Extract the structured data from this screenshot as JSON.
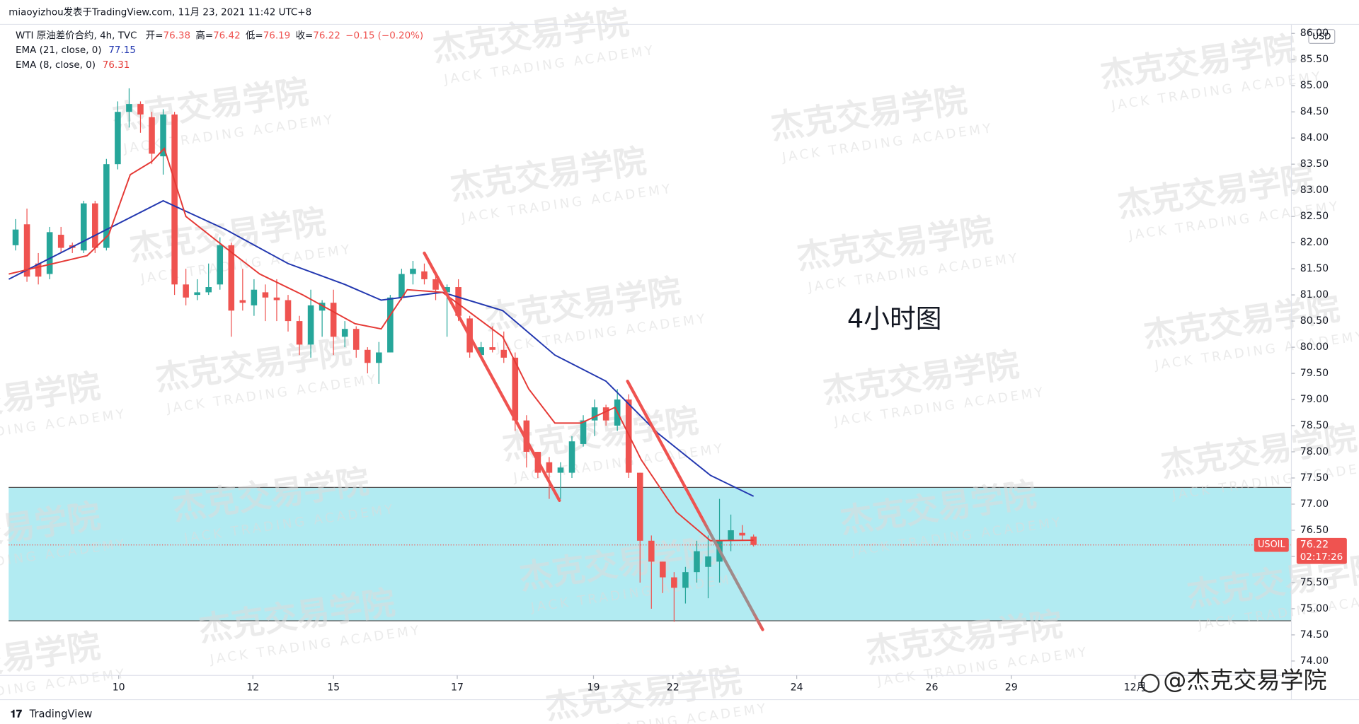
{
  "header": "miaoyizhou发表于TradingView.com,  11月 23, 2021 11:42 UTC+8",
  "chart_data": {
    "type": "candlestick",
    "symbol": "WTI 原油差价合约, 4h, TVC",
    "ohlc_labels": [
      "开=",
      "高=",
      "低=",
      "收="
    ],
    "change": "−0.15 (−0.20%)",
    "up_color": "#26a69a",
    "down_color": "#ef5350",
    "ohlc": {
      "open": [
        81.95,
        82.35,
        81.6,
        81.4,
        82.15,
        81.95,
        81.85,
        82.75,
        81.9,
        83.5,
        84.5,
        84.65,
        84.4,
        83.65,
        84.45,
        81.2,
        81.0,
        81.05,
        81.2,
        81.95,
        80.9,
        80.8,
        81.05,
        80.95,
        80.9,
        80.5,
        80.05,
        80.7,
        80.85,
        80.2,
        80.35,
        79.95,
        79.7,
        79.9,
        80.95,
        81.4,
        81.45,
        81.3,
        81.05,
        81.15,
        80.55,
        79.85,
        80.0,
        79.95,
        79.8,
        78.6,
        78.0,
        77.8,
        77.6,
        77.6,
        78.15,
        78.6,
        78.85,
        78.5,
        79.0,
        77.6,
        76.3,
        75.9,
        75.6,
        75.4,
        75.7,
        75.8,
        75.9,
        76.3,
        76.45,
        76.38
      ],
      "high": [
        82.45,
        82.65,
        81.8,
        82.3,
        82.3,
        82.0,
        82.8,
        82.8,
        83.6,
        84.7,
        84.95,
        84.7,
        84.5,
        84.55,
        84.5,
        81.5,
        81.3,
        81.6,
        82.1,
        82.0,
        81.5,
        81.3,
        81.2,
        81.3,
        81.0,
        80.6,
        81.1,
        80.9,
        81.1,
        80.5,
        80.4,
        80.0,
        80.1,
        81.0,
        81.5,
        81.65,
        81.6,
        81.4,
        81.2,
        81.3,
        80.6,
        80.1,
        80.4,
        80.3,
        79.9,
        78.7,
        78.0,
        77.9,
        77.8,
        78.3,
        78.7,
        79.0,
        78.9,
        79.2,
        79.1,
        77.6,
        76.4,
        75.9,
        75.7,
        75.8,
        76.3,
        76.4,
        77.1,
        76.8,
        76.6,
        76.42
      ],
      "low": [
        81.85,
        81.25,
        81.2,
        81.3,
        81.8,
        81.8,
        81.8,
        81.8,
        81.85,
        83.4,
        84.2,
        84.1,
        83.5,
        83.3,
        81.0,
        80.8,
        80.9,
        81.0,
        81.1,
        80.2,
        80.7,
        80.6,
        80.5,
        80.5,
        80.3,
        79.85,
        79.8,
        80.2,
        79.85,
        80.0,
        79.8,
        79.5,
        79.3,
        79.9,
        80.9,
        81.2,
        81.2,
        80.9,
        80.2,
        80.5,
        79.8,
        79.8,
        79.9,
        79.7,
        78.4,
        77.7,
        77.5,
        77.1,
        77.1,
        77.5,
        78.1,
        78.3,
        78.5,
        78.4,
        77.5,
        75.5,
        75.0,
        75.3,
        74.75,
        75.1,
        75.5,
        75.2,
        75.5,
        76.1,
        76.3,
        76.19
      ],
      "close": [
        82.25,
        81.35,
        81.35,
        82.2,
        81.9,
        81.9,
        82.75,
        81.9,
        83.5,
        84.5,
        84.65,
        84.45,
        83.7,
        84.45,
        81.2,
        80.95,
        81.05,
        81.15,
        81.95,
        80.7,
        80.85,
        81.1,
        80.95,
        80.9,
        80.5,
        80.05,
        80.8,
        80.85,
        80.2,
        80.35,
        79.95,
        79.7,
        79.9,
        80.95,
        81.4,
        81.5,
        81.3,
        81.1,
        81.15,
        80.6,
        79.9,
        80.0,
        79.95,
        79.8,
        78.6,
        78.0,
        77.6,
        77.6,
        77.7,
        78.2,
        78.6,
        78.85,
        78.6,
        79.0,
        77.6,
        76.3,
        75.9,
        75.6,
        75.4,
        75.7,
        76.1,
        76.0,
        76.3,
        76.5,
        76.4,
        76.22
      ]
    },
    "series": [
      {
        "name": "EMA (21, close, 0)",
        "color": "#2338b0",
        "x": [
          -0.6,
          13,
          18.5,
          24,
          29,
          32.2,
          37.6,
          42.9,
          47.5,
          52,
          56.6,
          61.2,
          65
        ],
        "values": [
          81.3,
          82.8,
          82.25,
          81.6,
          81.2,
          80.9,
          81.05,
          80.7,
          79.85,
          79.35,
          78.35,
          77.55,
          77.15
        ]
      },
      {
        "name": "EMA (8, close, 0)",
        "color": "#e53935",
        "x": [
          -0.6,
          6.3,
          8.2,
          10.1,
          12,
          13.1,
          15,
          18.5,
          21.5,
          25.3,
          29.9,
          32.2,
          34.5,
          37.6,
          39.8,
          42.9,
          45.2,
          47.5,
          49.8,
          52.8,
          55.1,
          58.2,
          61.2,
          65
        ],
        "values": [
          81.4,
          81.75,
          82.15,
          83.3,
          83.55,
          83.8,
          82.5,
          81.9,
          81.4,
          81.0,
          80.45,
          80.35,
          81.1,
          81.05,
          80.7,
          80.2,
          79.2,
          78.55,
          78.55,
          78.85,
          77.85,
          76.85,
          76.3,
          76.31
        ]
      }
    ],
    "xlim": [
      -0.61,
      112.37
    ],
    "ylim": [
      73.725,
      86.14
    ],
    "xticks": [
      {
        "value": 9.08,
        "label": "10"
      },
      {
        "value": 20.9,
        "label": "12"
      },
      {
        "value": 28.0,
        "label": "15"
      },
      {
        "value": 38.9,
        "label": "17"
      },
      {
        "value": 50.9,
        "label": "19"
      },
      {
        "value": 57.9,
        "label": "22"
      },
      {
        "value": 68.8,
        "label": "24"
      },
      {
        "value": 80.7,
        "label": "26"
      },
      {
        "value": 87.7,
        "label": "29"
      },
      {
        "value": 98.6,
        "label": "12月"
      }
    ],
    "yticks": [
      {
        "value": 74,
        "label": "74.00"
      },
      {
        "value": 74.5,
        "label": "74.50"
      },
      {
        "value": 75,
        "label": "75.00"
      },
      {
        "value": 75.5,
        "label": "75.50"
      },
      {
        "value": 76,
        "label": "76.00"
      },
      {
        "value": 76.5,
        "label": "76.50"
      },
      {
        "value": 77,
        "label": "77.00"
      },
      {
        "value": 77.5,
        "label": "77.50"
      },
      {
        "value": 78,
        "label": "78.00"
      },
      {
        "value": 78.5,
        "label": "78.50"
      },
      {
        "value": 79,
        "label": "79.00"
      },
      {
        "value": 79.5,
        "label": "79.50"
      },
      {
        "value": 80,
        "label": "80.00"
      },
      {
        "value": 80.5,
        "label": "80.50"
      },
      {
        "value": 81,
        "label": "81.00"
      },
      {
        "value": 81.5,
        "label": "81.50"
      },
      {
        "value": 82,
        "label": "82.00"
      },
      {
        "value": 82.5,
        "label": "82.50"
      },
      {
        "value": 83,
        "label": "83.00"
      },
      {
        "value": 83.5,
        "label": "83.50"
      },
      {
        "value": 84,
        "label": "84.00"
      },
      {
        "value": 84.5,
        "label": "84.50"
      },
      {
        "value": 85,
        "label": "85.00"
      },
      {
        "value": 85.5,
        "label": "85.50"
      },
      {
        "value": 86,
        "label": "86.00"
      }
    ],
    "zone": {
      "top": 77.32,
      "bottom": 74.77,
      "color": "#b2ebf2"
    },
    "trendlines": [
      {
        "x": [
          36,
          47.9
        ],
        "y": [
          81.8,
          77.07
        ]
      },
      {
        "x": [
          53.9,
          65.8
        ],
        "y": [
          79.35,
          74.6
        ]
      }
    ],
    "symbol_tag": "USOIL",
    "countdown": "02:17:26",
    "currency": "USD",
    "annotation": "4小时图"
  },
  "watermark": {
    "title": "杰克交易学院",
    "subtitle": "JACK TRADING ACADEMY"
  },
  "footer": {
    "logo": "TradingView",
    "credit": "@杰克交易学院"
  }
}
